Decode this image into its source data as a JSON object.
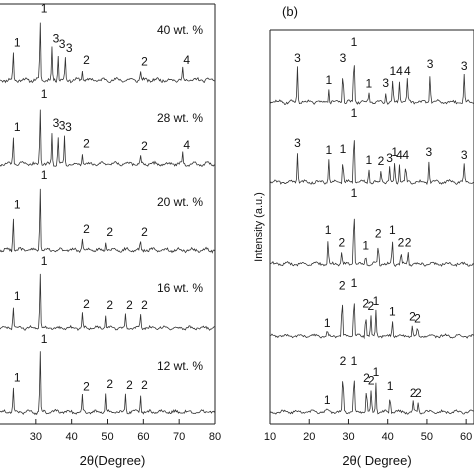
{
  "chart_data": [
    {
      "type": "line",
      "panel_label": "",
      "xlabel": "2θ(Degree)",
      "ylabel": "",
      "xlim": [
        20,
        80
      ],
      "xticks": [
        30,
        40,
        50,
        60,
        70,
        80
      ],
      "grid": false,
      "series": [
        {
          "name": "40 wt. %",
          "peaks": [
            {
              "x": 23.7,
              "h": 0.42,
              "label": "1"
            },
            {
              "x": 31.2,
              "h": 0.92,
              "label": "1"
            },
            {
              "x": 34.5,
              "h": 0.48,
              "label": "3"
            },
            {
              "x": 36.2,
              "h": 0.4,
              "label": "3"
            },
            {
              "x": 38.2,
              "h": 0.34,
              "label": "3"
            },
            {
              "x": 43.0,
              "h": 0.16,
              "label": "2"
            },
            {
              "x": 59.2,
              "h": 0.14,
              "label": "2"
            },
            {
              "x": 71.0,
              "h": 0.16,
              "label": "4"
            }
          ]
        },
        {
          "name": "28 wt. %",
          "peaks": [
            {
              "x": 23.7,
              "h": 0.44,
              "label": "1"
            },
            {
              "x": 31.2,
              "h": 0.95,
              "label": "1"
            },
            {
              "x": 34.5,
              "h": 0.5,
              "label": "3"
            },
            {
              "x": 36.2,
              "h": 0.46,
              "label": "3"
            },
            {
              "x": 38.0,
              "h": 0.44,
              "label": "3"
            },
            {
              "x": 43.0,
              "h": 0.18,
              "label": "2"
            },
            {
              "x": 59.2,
              "h": 0.14,
              "label": "2"
            },
            {
              "x": 71.0,
              "h": 0.16,
              "label": "4"
            }
          ]
        },
        {
          "name": "20 wt. %",
          "peaks": [
            {
              "x": 23.7,
              "h": 0.55,
              "label": "1"
            },
            {
              "x": 31.2,
              "h": 1.0,
              "label": "1"
            },
            {
              "x": 43.0,
              "h": 0.18,
              "label": "2"
            },
            {
              "x": 49.5,
              "h": 0.14,
              "label": "2"
            },
            {
              "x": 59.2,
              "h": 0.14,
              "label": "2"
            }
          ]
        },
        {
          "name": "16 wt. %",
          "peaks": [
            {
              "x": 23.7,
              "h": 0.4,
              "label": "1"
            },
            {
              "x": 31.2,
              "h": 1.0,
              "label": "1"
            },
            {
              "x": 43.0,
              "h": 0.26,
              "label": "2"
            },
            {
              "x": 49.5,
              "h": 0.24,
              "label": "2"
            },
            {
              "x": 55.0,
              "h": 0.24,
              "label": "2"
            },
            {
              "x": 59.2,
              "h": 0.24,
              "label": "2"
            }
          ]
        },
        {
          "name": "12 wt. %",
          "peaks": [
            {
              "x": 23.7,
              "h": 0.4,
              "label": "1"
            },
            {
              "x": 31.2,
              "h": 1.0,
              "label": "1"
            },
            {
              "x": 43.0,
              "h": 0.26,
              "label": "2"
            },
            {
              "x": 49.5,
              "h": 0.3,
              "label": "2"
            },
            {
              "x": 55.0,
              "h": 0.28,
              "label": "2"
            },
            {
              "x": 59.2,
              "h": 0.28,
              "label": "2"
            }
          ]
        }
      ]
    },
    {
      "type": "line",
      "panel_label": "(b)",
      "xlabel": "2θ( Degree)",
      "ylabel": "Intensity (a.u.)",
      "xlim": [
        10,
        62
      ],
      "xticks": [
        10,
        20,
        30,
        40,
        50,
        60
      ],
      "grid": false,
      "series": [
        {
          "name": "",
          "peaks": [
            {
              "x": 17.0,
              "h": 0.55,
              "label": "3"
            },
            {
              "x": 25.0,
              "h": 0.2,
              "label": "1"
            },
            {
              "x": 28.6,
              "h": 0.55,
              "label": "3"
            },
            {
              "x": 31.4,
              "h": 0.8,
              "label": "1"
            },
            {
              "x": 35.2,
              "h": 0.15,
              "label": "1"
            },
            {
              "x": 39.5,
              "h": 0.16,
              "label": "3"
            },
            {
              "x": 41.3,
              "h": 0.34,
              "label": "1"
            },
            {
              "x": 43.0,
              "h": 0.34,
              "label": "4"
            },
            {
              "x": 45.0,
              "h": 0.34,
              "label": "4"
            },
            {
              "x": 50.8,
              "h": 0.45,
              "label": "3"
            },
            {
              "x": 59.5,
              "h": 0.42,
              "label": "3"
            }
          ]
        },
        {
          "name": "",
          "peaks": [
            {
              "x": 17.0,
              "h": 0.5,
              "label": "3"
            },
            {
              "x": 25.0,
              "h": 0.38,
              "label": "1"
            },
            {
              "x": 28.6,
              "h": 0.4,
              "label": "1"
            },
            {
              "x": 31.4,
              "h": 1.0,
              "label": "1"
            },
            {
              "x": 35.2,
              "h": 0.22,
              "label": "1"
            },
            {
              "x": 38.3,
              "h": 0.2,
              "label": "2"
            },
            {
              "x": 40.5,
              "h": 0.25,
              "label": "3"
            },
            {
              "x": 41.8,
              "h": 0.35,
              "label": "1"
            },
            {
              "x": 43.0,
              "h": 0.3,
              "label": "4"
            },
            {
              "x": 44.6,
              "h": 0.3,
              "label": "4"
            },
            {
              "x": 50.5,
              "h": 0.35,
              "label": "3"
            },
            {
              "x": 59.5,
              "h": 0.3,
              "label": "3"
            }
          ]
        },
        {
          "name": "",
          "peaks": [
            {
              "x": 24.8,
              "h": 0.4,
              "label": "1"
            },
            {
              "x": 28.3,
              "h": 0.2,
              "label": "2"
            },
            {
              "x": 31.4,
              "h": 1.0,
              "label": "1"
            },
            {
              "x": 34.4,
              "h": 0.15,
              "label": "1"
            },
            {
              "x": 37.6,
              "h": 0.35,
              "label": "2"
            },
            {
              "x": 41.2,
              "h": 0.4,
              "label": "1"
            },
            {
              "x": 43.4,
              "h": 0.2,
              "label": "2"
            },
            {
              "x": 45.2,
              "h": 0.2,
              "label": "2"
            }
          ]
        },
        {
          "name": "",
          "peaks": [
            {
              "x": 24.6,
              "h": 0.08,
              "label": "1"
            },
            {
              "x": 28.4,
              "h": 0.8,
              "label": "2"
            },
            {
              "x": 31.4,
              "h": 0.85,
              "label": "1"
            },
            {
              "x": 34.4,
              "h": 0.45,
              "label": "2"
            },
            {
              "x": 35.7,
              "h": 0.4,
              "label": "2"
            },
            {
              "x": 37.0,
              "h": 0.5,
              "label": "1"
            },
            {
              "x": 41.2,
              "h": 0.3,
              "label": "1"
            },
            {
              "x": 46.3,
              "h": 0.2,
              "label": "2"
            },
            {
              "x": 47.6,
              "h": 0.16,
              "label": "2"
            }
          ]
        },
        {
          "name": "",
          "peaks": [
            {
              "x": 24.6,
              "h": 0.05,
              "label": "1"
            },
            {
              "x": 28.6,
              "h": 0.75,
              "label": "2"
            },
            {
              "x": 31.4,
              "h": 0.75,
              "label": "1"
            },
            {
              "x": 34.6,
              "h": 0.45,
              "label": "2"
            },
            {
              "x": 35.8,
              "h": 0.4,
              "label": "2"
            },
            {
              "x": 37.0,
              "h": 0.55,
              "label": "1"
            },
            {
              "x": 40.6,
              "h": 0.3,
              "label": "1"
            },
            {
              "x": 46.5,
              "h": 0.18,
              "label": "2"
            },
            {
              "x": 47.8,
              "h": 0.18,
              "label": "2"
            }
          ]
        }
      ]
    }
  ]
}
